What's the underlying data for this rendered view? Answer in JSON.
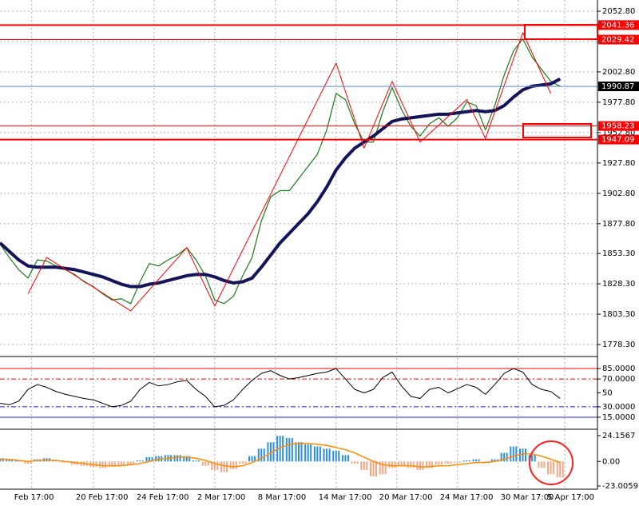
{
  "chart_data": [
    {
      "type": "line",
      "x": [
        0,
        1,
        2,
        3,
        4,
        5,
        6,
        7,
        8,
        9,
        10,
        11,
        12,
        13,
        14,
        15,
        16,
        17,
        18,
        19,
        20,
        21,
        22,
        23,
        24,
        25,
        26,
        27,
        28,
        29,
        30,
        31,
        32,
        33,
        34,
        35,
        36,
        37,
        38,
        39,
        40,
        41,
        42,
        43,
        44,
        45,
        46,
        47,
        48,
        49,
        50,
        51,
        52,
        53,
        54,
        55,
        56,
        57,
        58,
        59,
        60
      ],
      "xlim": [
        0,
        64
      ],
      "xticks": [
        {
          "value": 3.4,
          "label": "Feb 17:00"
        },
        {
          "value": 10,
          "label": "20 Feb 17:00"
        },
        {
          "value": 16.5,
          "label": "24 Feb 17:00"
        },
        {
          "value": 23,
          "label": "2 Mar 17:00"
        },
        {
          "value": 29.5,
          "label": "8 Mar 17:00"
        },
        {
          "value": 36,
          "label": "14 Mar 17:00"
        },
        {
          "value": 42.5,
          "label": "20 Mar 17:00"
        },
        {
          "value": 49,
          "label": "24 Mar 17:00"
        },
        {
          "value": 55.5,
          "label": "30 Mar 17:00"
        },
        {
          "value": 60.5,
          "label": "5 Apr 17:00"
        }
      ],
      "ylim": [
        1769.1,
        2062.0
      ],
      "yticks": [
        {
          "value": 2052.8,
          "label": "2052.80"
        },
        {
          "value": 2027.8,
          "label": "2027.80"
        },
        {
          "value": 2002.8,
          "label": "2002.80"
        },
        {
          "value": 1977.8,
          "label": "1977.80"
        },
        {
          "value": 1952.8,
          "label": "1952.80"
        },
        {
          "value": 1927.8,
          "label": "1927.80"
        },
        {
          "value": 1902.8,
          "label": "1902.80"
        },
        {
          "value": 1877.8,
          "label": "1877.80"
        },
        {
          "value": 1853.3,
          "label": "1853.30"
        },
        {
          "value": 1828.3,
          "label": "1828.30"
        },
        {
          "value": 1803.3,
          "label": "1803.30"
        },
        {
          "value": 1778.3,
          "label": "1778.30"
        }
      ],
      "grid": true,
      "series": [
        {
          "color": "#1a7a1a",
          "width": 1.2,
          "values": [
            1861,
            1850,
            1840,
            1833,
            1848,
            1847,
            1843,
            1840,
            1836,
            1830,
            1826,
            1820,
            1815,
            1816,
            1812,
            1830,
            1845,
            1843,
            1848,
            1852,
            1858,
            1848,
            1835,
            1815,
            1812,
            1818,
            1835,
            1850,
            1880,
            1900,
            1905,
            1905,
            1915,
            1925,
            1935,
            1955,
            1985,
            1980,
            1960,
            1945,
            1945,
            1970,
            1990,
            1972,
            1958,
            1950,
            1960,
            1965,
            1958,
            1965,
            1978,
            1975,
            1955,
            1975,
            2000,
            2020,
            2030,
            2015,
            2005,
            1995,
            1990.87
          ]
        },
        {
          "color": "#14145a",
          "width": 4,
          "values": [
            1862,
            1855,
            1848,
            1843,
            1842,
            1842,
            1842,
            1841,
            1840,
            1838,
            1836,
            1834,
            1831,
            1828,
            1826,
            1826,
            1828,
            1829,
            1831,
            1833,
            1835,
            1836,
            1836,
            1834,
            1831,
            1829,
            1830,
            1833,
            1842,
            1852,
            1862,
            1870,
            1878,
            1886,
            1896,
            1908,
            1922,
            1932,
            1940,
            1945,
            1950,
            1956,
            1962,
            1964,
            1965,
            1966,
            1967,
            1968,
            1968,
            1969,
            1970,
            1971,
            1970,
            1971,
            1975,
            1982,
            1988,
            1991,
            1992,
            1993,
            1997
          ]
        }
      ],
      "zigzag": {
        "color": "#ff0000",
        "x": [
          3,
          5,
          14,
          20,
          23,
          36,
          39,
          42,
          45,
          50,
          52,
          56,
          59
        ],
        "values": [
          1820,
          1850,
          1806,
          1858,
          1810,
          2010,
          1940,
          1995,
          1945,
          1980,
          1948,
          2035,
          1985
        ]
      },
      "levels": [
        {
          "value": 2041.36,
          "color": "#ff0000",
          "width": 2
        },
        {
          "value": 2029.42,
          "color": "#ff0000",
          "width": 1
        },
        {
          "value": 1990.87,
          "color": "#6080d0",
          "width": 1,
          "label_bg": "#000000"
        },
        {
          "value": 1958.23,
          "color": "#ff0000",
          "width": 1
        },
        {
          "value": 1947.09,
          "color": "#ff0000",
          "width": 2
        }
      ]
    },
    {
      "type": "line",
      "ylim": [
        0,
        100
      ],
      "yticks": [
        {
          "value": 85,
          "label": "85.0000"
        },
        {
          "value": 70,
          "label": "70.0000"
        },
        50,
        {
          "value": 30,
          "label": "30.0000"
        },
        {
          "value": 15,
          "label": "15.0000"
        }
      ],
      "series": [
        {
          "color": "#000000",
          "width": 1,
          "values": [
            35,
            33,
            38,
            55,
            62,
            58,
            52,
            48,
            45,
            42,
            40,
            35,
            30,
            32,
            38,
            55,
            65,
            60,
            62,
            66,
            68,
            55,
            45,
            30,
            32,
            40,
            55,
            68,
            78,
            82,
            75,
            70,
            72,
            75,
            78,
            80,
            85,
            70,
            55,
            50,
            55,
            72,
            80,
            60,
            45,
            42,
            55,
            58,
            50,
            56,
            62,
            58,
            48,
            62,
            78,
            85,
            80,
            62,
            55,
            52,
            42
          ]
        }
      ]
    },
    {
      "type": "bar",
      "ylim": [
        -26,
        29.4
      ],
      "yticks": [
        24.1567,
        {
          "value": 0,
          "label": "0.00"
        },
        -23.0059
      ],
      "color_up": "#2b8ee0",
      "color_down": "#f4a582",
      "values": [
        3,
        2,
        1,
        -2,
        2,
        3,
        1,
        -1,
        -3,
        -4,
        -5,
        -6,
        -5,
        -4,
        -3,
        1,
        4,
        5,
        6,
        6,
        5,
        1,
        -4,
        -8,
        -10,
        -7,
        -2,
        5,
        12,
        18,
        24,
        22,
        18,
        16,
        14,
        12,
        10,
        6,
        -2,
        -8,
        -14,
        -12,
        -6,
        -4,
        -6,
        -8,
        -6,
        -3,
        -2,
        -1,
        1,
        2,
        -1,
        2,
        8,
        14,
        12,
        6,
        -6,
        -12,
        -15
      ],
      "series": [
        {
          "color": "#ff8c00",
          "width": 1.5,
          "values": [
            2,
            2,
            1,
            0,
            1,
            1,
            1,
            0,
            -1,
            -2,
            -3,
            -4,
            -4,
            -4,
            -3,
            -2,
            0,
            2,
            3,
            4,
            4,
            3,
            1,
            -2,
            -4,
            -5,
            -4,
            -1,
            3,
            8,
            13,
            16,
            17,
            17,
            16,
            15,
            13,
            11,
            8,
            4,
            0,
            -3,
            -4,
            -4,
            -4,
            -5,
            -5,
            -4,
            -4,
            -3,
            -2,
            -1,
            -1,
            0,
            2,
            5,
            7,
            7,
            5,
            2,
            -1
          ]
        }
      ]
    }
  ]
}
